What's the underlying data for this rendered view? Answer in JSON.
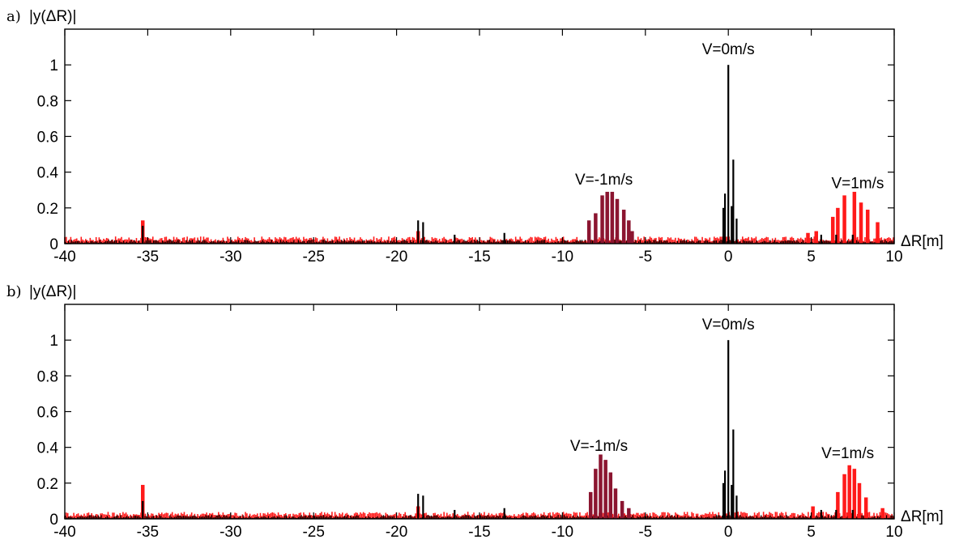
{
  "chart_data": [
    {
      "type": "bar",
      "panel_label": "a)",
      "ylabel": "|y(ΔR)|",
      "xlabel": "ΔR[m]",
      "xlim": [
        -40,
        10
      ],
      "ylim": [
        0,
        1.2
      ],
      "xticks": [
        -40,
        -35,
        -30,
        -25,
        -20,
        -15,
        -10,
        -5,
        0,
        5,
        10
      ],
      "yticks": [
        0,
        0.2,
        0.4,
        0.6,
        0.8,
        1
      ],
      "xtick_labels": [
        "-40",
        "-35",
        "-30",
        "-25",
        "-20",
        "-15",
        "-10",
        "-5",
        "0",
        "5",
        "10"
      ],
      "ytick_labels": [
        "0",
        "0.2",
        "0.4",
        "0.6",
        "0.8",
        "1"
      ],
      "grid": false,
      "colors": {
        "red": "#ff1a1a",
        "dark_red": "#8b1530",
        "black": "#000000"
      },
      "annotations": [
        {
          "text": "V=0m/s",
          "x": 0,
          "y": 1.06
        },
        {
          "text": "V=-1m/s",
          "x": -7.5,
          "y": 0.33
        },
        {
          "text": "V=1m/s",
          "x": 7.8,
          "y": 0.31
        }
      ],
      "series": [
        {
          "color": "#ff1a1a",
          "points": [
            [
              -35.3,
              0.13
            ],
            [
              7.0,
              0.27
            ],
            [
              7.6,
              0.29
            ],
            [
              8.0,
              0.23
            ],
            [
              6.6,
              0.2
            ],
            [
              6.3,
              0.15
            ],
            [
              8.4,
              0.19
            ],
            [
              9.0,
              0.12
            ],
            [
              5.3,
              0.07
            ],
            [
              4.8,
              0.06
            ],
            [
              -18.7,
              0.07
            ]
          ]
        },
        {
          "color": "#8b1530",
          "points": [
            [
              -8.4,
              0.13
            ],
            [
              -8.0,
              0.17
            ],
            [
              -7.6,
              0.27
            ],
            [
              -7.3,
              0.29
            ],
            [
              -7.0,
              0.29
            ],
            [
              -6.7,
              0.25
            ],
            [
              -6.3,
              0.19
            ],
            [
              -6.0,
              0.13
            ],
            [
              -5.8,
              0.07
            ]
          ]
        },
        {
          "color": "#000000",
          "points": [
            [
              0.0,
              1.0
            ],
            [
              0.3,
              0.47
            ],
            [
              -0.2,
              0.28
            ],
            [
              -0.3,
              0.2
            ],
            [
              0.2,
              0.21
            ],
            [
              0.5,
              0.14
            ],
            [
              -18.7,
              0.13
            ],
            [
              -18.4,
              0.12
            ],
            [
              -35.3,
              0.1
            ],
            [
              5.6,
              0.05
            ],
            [
              6.5,
              0.05
            ],
            [
              7.5,
              0.05
            ],
            [
              -16.5,
              0.05
            ],
            [
              -13.5,
              0.06
            ]
          ]
        }
      ]
    },
    {
      "type": "bar",
      "panel_label": "b)",
      "ylabel": "|y(ΔR)|",
      "xlabel": "ΔR[m]",
      "xlim": [
        -40,
        10
      ],
      "ylim": [
        0,
        1.2
      ],
      "xticks": [
        -40,
        -35,
        -30,
        -25,
        -20,
        -15,
        -10,
        -5,
        0,
        5,
        10
      ],
      "yticks": [
        0,
        0.2,
        0.4,
        0.6,
        0.8,
        1
      ],
      "xtick_labels": [
        "-40",
        "-35",
        "-30",
        "-25",
        "-20",
        "-15",
        "-10",
        "-5",
        "0",
        "5",
        "10"
      ],
      "ytick_labels": [
        "0",
        "0.2",
        "0.4",
        "0.6",
        "0.8",
        "1"
      ],
      "grid": false,
      "colors": {
        "red": "#ff1a1a",
        "dark_red": "#8b1530",
        "black": "#000000"
      },
      "annotations": [
        {
          "text": "V=0m/s",
          "x": 0,
          "y": 1.06
        },
        {
          "text": "V=-1m/s",
          "x": -7.8,
          "y": 0.38
        },
        {
          "text": "V=1m/s",
          "x": 7.2,
          "y": 0.34
        }
      ],
      "series": [
        {
          "color": "#ff1a1a",
          "points": [
            [
              -35.3,
              0.19
            ],
            [
              7.3,
              0.3
            ],
            [
              7.6,
              0.28
            ],
            [
              7.0,
              0.25
            ],
            [
              7.9,
              0.2
            ],
            [
              6.6,
              0.15
            ],
            [
              8.3,
              0.12
            ],
            [
              5.1,
              0.07
            ],
            [
              9.3,
              0.06
            ],
            [
              -18.7,
              0.07
            ]
          ]
        },
        {
          "color": "#8b1530",
          "points": [
            [
              -8.3,
              0.15
            ],
            [
              -8.0,
              0.28
            ],
            [
              -7.7,
              0.36
            ],
            [
              -7.4,
              0.33
            ],
            [
              -7.1,
              0.26
            ],
            [
              -6.8,
              0.17
            ],
            [
              -6.4,
              0.1
            ],
            [
              -6.0,
              0.06
            ]
          ]
        },
        {
          "color": "#000000",
          "points": [
            [
              0.0,
              1.0
            ],
            [
              0.3,
              0.5
            ],
            [
              -0.2,
              0.27
            ],
            [
              -0.3,
              0.2
            ],
            [
              0.2,
              0.19
            ],
            [
              0.5,
              0.13
            ],
            [
              -18.7,
              0.14
            ],
            [
              -18.4,
              0.13
            ],
            [
              -35.3,
              0.1
            ],
            [
              5.6,
              0.05
            ],
            [
              6.5,
              0.05
            ],
            [
              7.5,
              0.05
            ],
            [
              -16.5,
              0.05
            ],
            [
              -13.5,
              0.06
            ]
          ]
        }
      ]
    }
  ]
}
